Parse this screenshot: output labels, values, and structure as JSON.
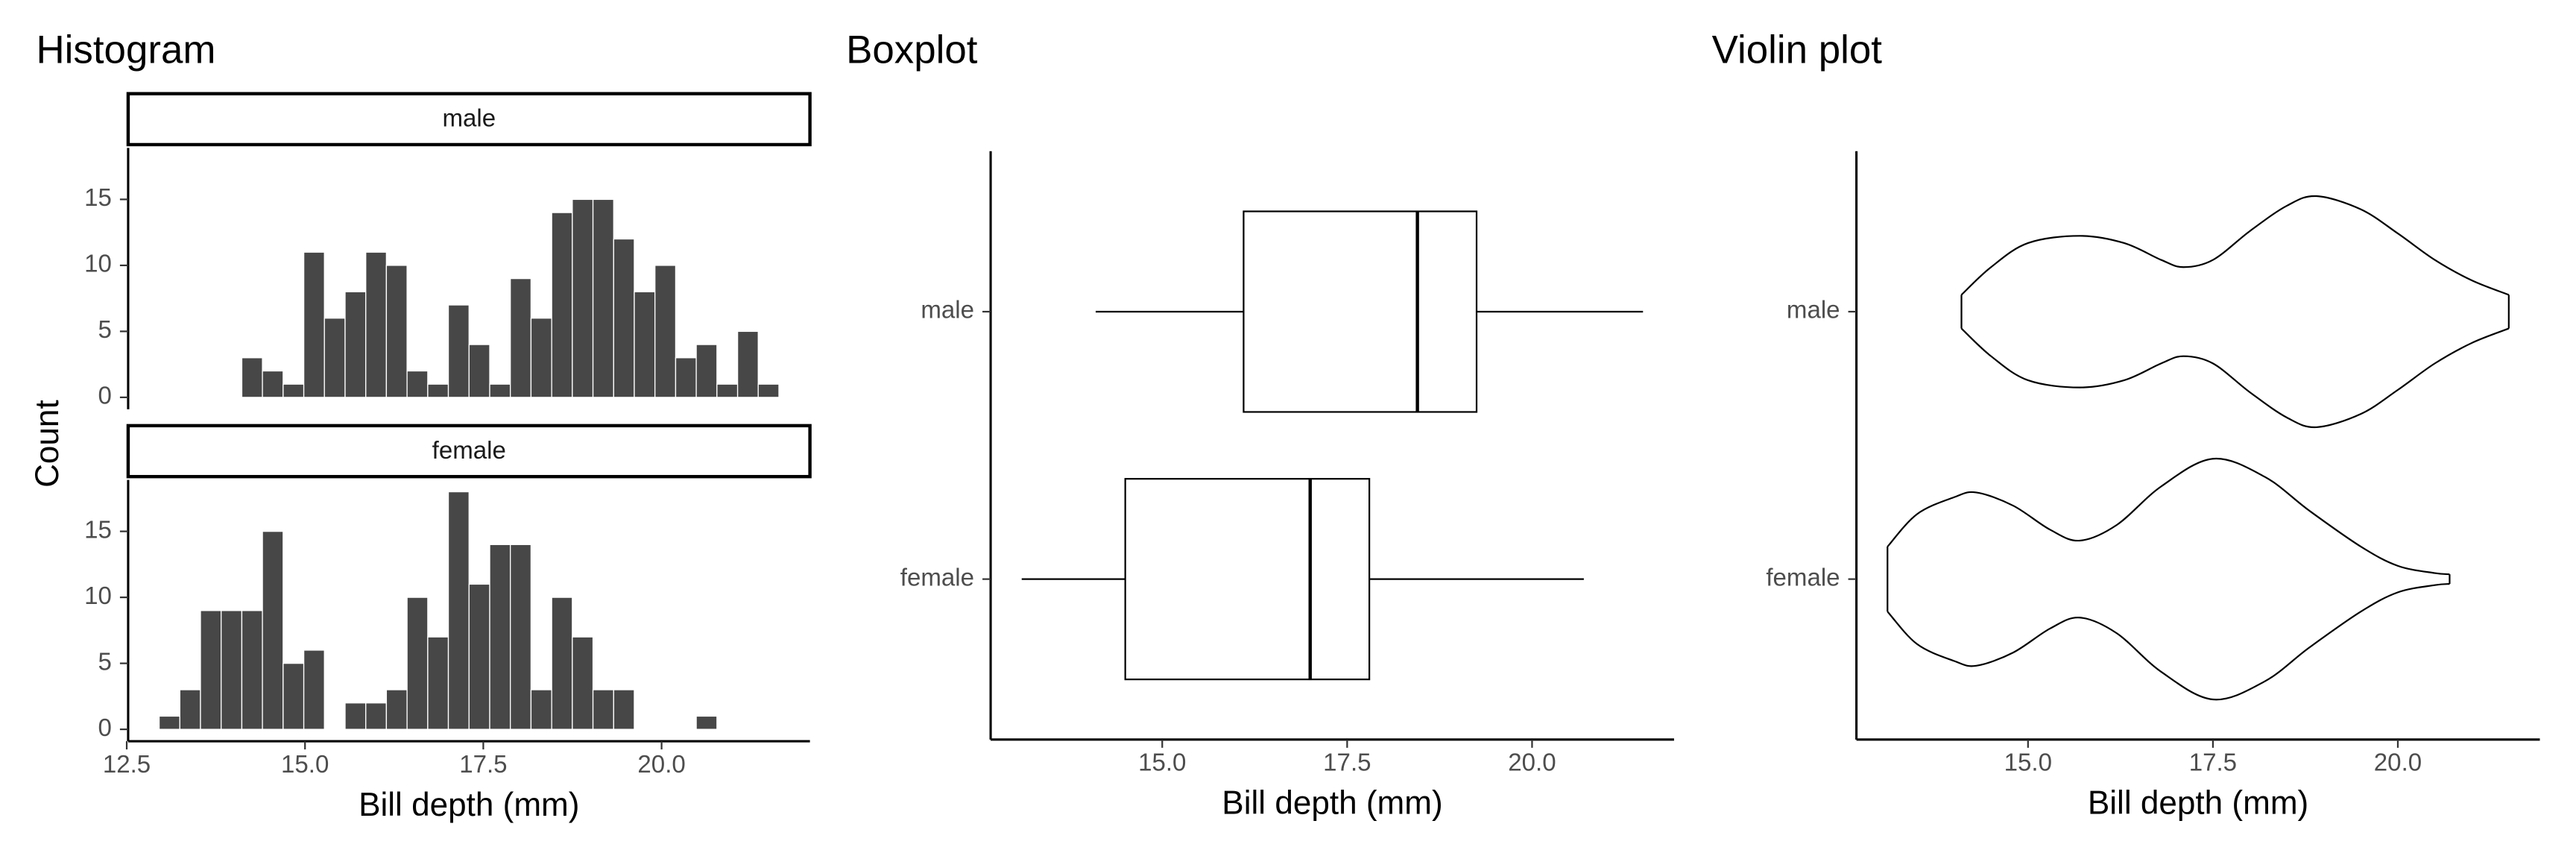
{
  "chart_data": [
    {
      "type": "histogram",
      "title": "Histogram",
      "xlabel": "Bill depth (mm)",
      "ylabel": "Count",
      "bins": [
        12.955,
        13.245,
        13.534,
        13.824,
        14.114,
        14.403,
        14.693,
        14.983,
        15.272,
        15.562,
        15.852,
        16.141,
        16.431,
        16.721,
        17.01,
        17.3,
        17.59,
        17.879,
        18.169,
        18.459,
        18.748,
        19.038,
        19.328,
        19.617,
        19.907,
        20.197,
        20.486,
        20.776,
        21.066,
        21.355,
        21.645
      ],
      "series": [
        {
          "name": "male",
          "values": [
            0,
            0,
            0,
            0,
            3,
            2,
            1,
            11,
            6,
            8,
            11,
            10,
            2,
            1,
            7,
            4,
            1,
            9,
            6,
            14,
            15,
            15,
            12,
            8,
            10,
            3,
            4,
            1,
            5,
            1
          ]
        },
        {
          "name": "female",
          "values": [
            1,
            3,
            9,
            9,
            9,
            15,
            5,
            6,
            0,
            2,
            2,
            3,
            10,
            7,
            18,
            11,
            14,
            14,
            3,
            10,
            7,
            3,
            3,
            0,
            0,
            0,
            1,
            0,
            0,
            0
          ]
        }
      ],
      "color": "#474747",
      "xlim": [
        12.52,
        22.08
      ],
      "xticks": [
        12.5,
        {
          "value": 15,
          "label": "15.0"
        },
        17.5,
        {
          "value": 20,
          "label": "20.0"
        }
      ],
      "ylim": [
        -0.9,
        18.9
      ],
      "yticks": [
        0,
        5,
        10,
        15
      ]
    },
    {
      "type": "boxplot",
      "title": "Boxplot",
      "xlabel": "Bill depth (mm)",
      "categories": [
        "male",
        "female"
      ],
      "boxes": [
        {
          "min": 14.1,
          "q1": 16.1,
          "median": 18.45,
          "q3": 19.25,
          "max": 21.5
        },
        {
          "min": 13.1,
          "q1": 14.5,
          "median": 17.0,
          "q3": 17.8,
          "max": 20.7
        }
      ],
      "xlim": [
        12.68,
        21.92
      ],
      "xticks": [
        {
          "value": 15,
          "label": "15.0"
        },
        17.5,
        {
          "value": 20,
          "label": "20.0"
        }
      ]
    },
    {
      "type": "violin",
      "title": "Violin plot",
      "xlabel": "Bill depth (mm)",
      "categories": [
        "male",
        "female"
      ],
      "violins": [
        {
          "x": [
            14.1,
            14.5,
            15.0,
            15.7,
            16.3,
            16.8,
            17.1,
            17.5,
            18.0,
            18.5,
            18.9,
            19.5,
            20.0,
            20.5,
            21.0,
            21.5
          ],
          "values": [
            0.14,
            0.37,
            0.57,
            0.63,
            0.57,
            0.43,
            0.37,
            0.43,
            0.67,
            0.88,
            0.96,
            0.85,
            0.65,
            0.43,
            0.26,
            0.14
          ]
        },
        {
          "x": [
            13.1,
            13.5,
            14.0,
            14.3,
            14.8,
            15.3,
            15.7,
            16.2,
            16.8,
            17.5,
            18.2,
            18.8,
            19.5,
            20.0,
            20.5,
            20.7
          ],
          "values": [
            0.27,
            0.54,
            0.68,
            0.72,
            0.61,
            0.41,
            0.32,
            0.45,
            0.77,
            1.0,
            0.85,
            0.57,
            0.27,
            0.11,
            0.05,
            0.04
          ]
        }
      ],
      "xlim": [
        12.68,
        21.92
      ],
      "xticks": [
        {
          "value": 15,
          "label": "15.0"
        },
        17.5,
        {
          "value": 20,
          "label": "20.0"
        }
      ]
    }
  ]
}
